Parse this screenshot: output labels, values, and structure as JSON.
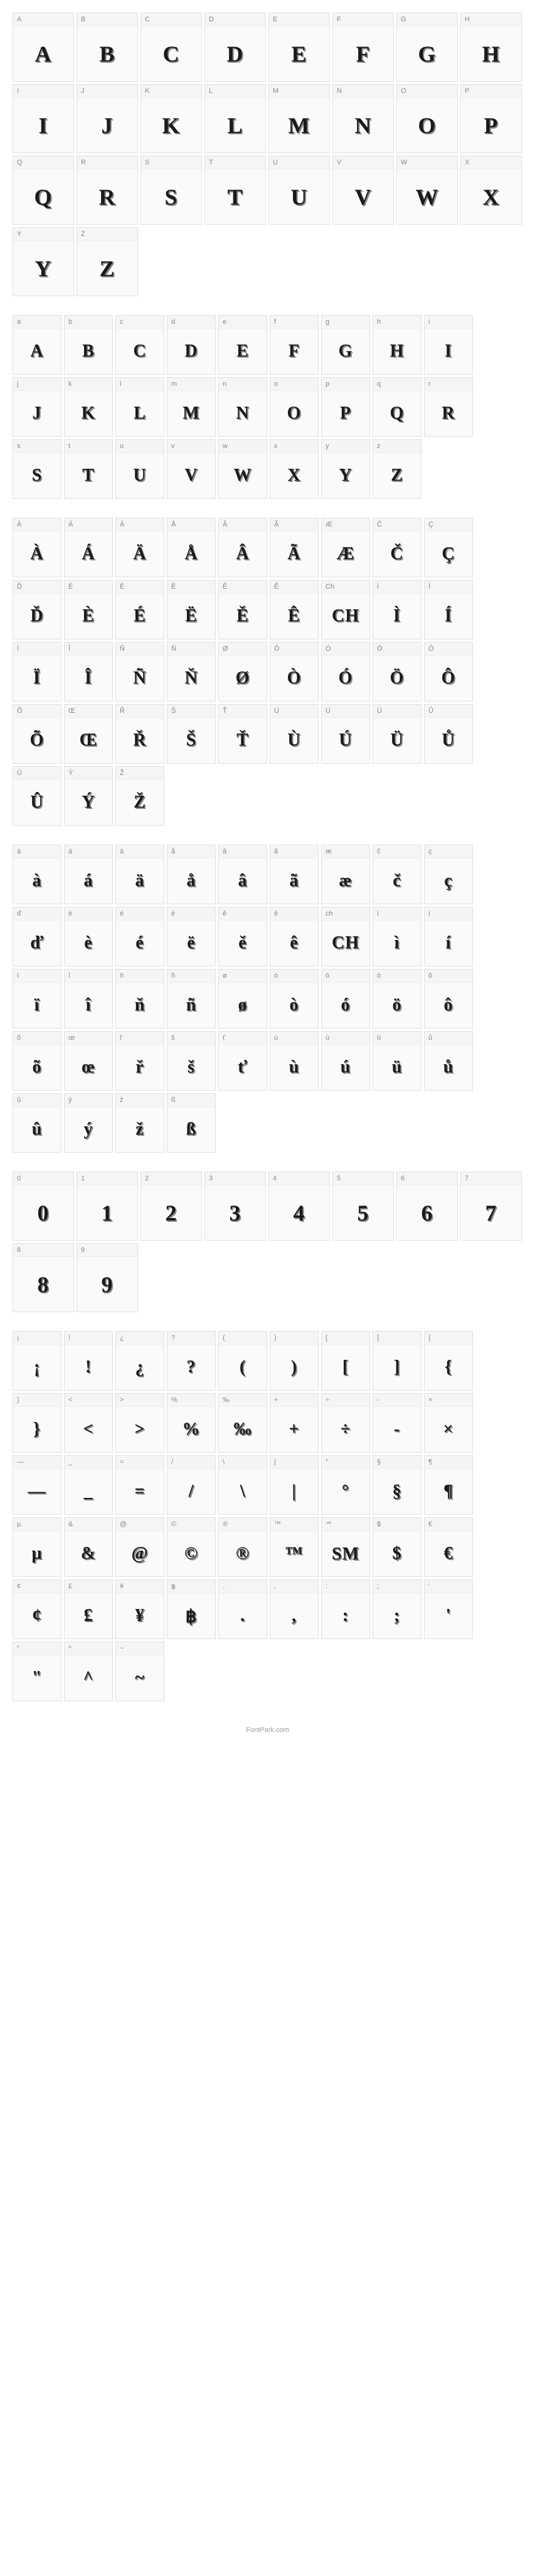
{
  "footer": "FontPark.com",
  "sections": [
    {
      "cols": 8,
      "cells": [
        {
          "label": "A",
          "glyph": "A"
        },
        {
          "label": "B",
          "glyph": "B"
        },
        {
          "label": "C",
          "glyph": "C"
        },
        {
          "label": "D",
          "glyph": "D"
        },
        {
          "label": "E",
          "glyph": "E"
        },
        {
          "label": "F",
          "glyph": "F"
        },
        {
          "label": "G",
          "glyph": "G"
        },
        {
          "label": "H",
          "glyph": "H"
        },
        {
          "label": "I",
          "glyph": "I"
        },
        {
          "label": "J",
          "glyph": "J"
        },
        {
          "label": "K",
          "glyph": "K"
        },
        {
          "label": "L",
          "glyph": "L"
        },
        {
          "label": "M",
          "glyph": "M"
        },
        {
          "label": "N",
          "glyph": "N"
        },
        {
          "label": "O",
          "glyph": "O"
        },
        {
          "label": "P",
          "glyph": "P"
        },
        {
          "label": "Q",
          "glyph": "Q"
        },
        {
          "label": "R",
          "glyph": "R"
        },
        {
          "label": "S",
          "glyph": "S"
        },
        {
          "label": "T",
          "glyph": "T"
        },
        {
          "label": "U",
          "glyph": "U"
        },
        {
          "label": "V",
          "glyph": "V"
        },
        {
          "label": "W",
          "glyph": "W"
        },
        {
          "label": "X",
          "glyph": "X"
        },
        {
          "label": "Y",
          "glyph": "Y"
        },
        {
          "label": "Z",
          "glyph": "Z"
        }
      ]
    },
    {
      "cols": 10,
      "cells": [
        {
          "label": "a",
          "glyph": "A"
        },
        {
          "label": "b",
          "glyph": "B"
        },
        {
          "label": "c",
          "glyph": "C"
        },
        {
          "label": "d",
          "glyph": "D"
        },
        {
          "label": "e",
          "glyph": "E"
        },
        {
          "label": "f",
          "glyph": "F"
        },
        {
          "label": "g",
          "glyph": "G"
        },
        {
          "label": "h",
          "glyph": "H"
        },
        {
          "label": "i",
          "glyph": "I"
        },
        {
          "label": "j",
          "glyph": "J"
        },
        {
          "label": "k",
          "glyph": "K"
        },
        {
          "label": "l",
          "glyph": "L"
        },
        {
          "label": "m",
          "glyph": "M"
        },
        {
          "label": "n",
          "glyph": "N"
        },
        {
          "label": "o",
          "glyph": "O"
        },
        {
          "label": "p",
          "glyph": "P"
        },
        {
          "label": "q",
          "glyph": "Q"
        },
        {
          "label": "r",
          "glyph": "R"
        },
        {
          "label": "s",
          "glyph": "S"
        },
        {
          "label": "t",
          "glyph": "T"
        },
        {
          "label": "u",
          "glyph": "U"
        },
        {
          "label": "v",
          "glyph": "V"
        },
        {
          "label": "w",
          "glyph": "W"
        },
        {
          "label": "x",
          "glyph": "X"
        },
        {
          "label": "y",
          "glyph": "Y"
        },
        {
          "label": "z",
          "glyph": "Z"
        }
      ]
    },
    {
      "cols": 10,
      "cells": [
        {
          "label": "À",
          "glyph": "À"
        },
        {
          "label": "Á",
          "glyph": "Á"
        },
        {
          "label": "Ä",
          "glyph": "Ä"
        },
        {
          "label": "Å",
          "glyph": "Å"
        },
        {
          "label": "Â",
          "glyph": "Â"
        },
        {
          "label": "Ã",
          "glyph": "Ã"
        },
        {
          "label": "Æ",
          "glyph": "Æ"
        },
        {
          "label": "Č",
          "glyph": "Č"
        },
        {
          "label": "Ç",
          "glyph": "Ç"
        },
        {
          "label": "Ď",
          "glyph": "Ď"
        },
        {
          "label": "È",
          "glyph": "È"
        },
        {
          "label": "É",
          "glyph": "É"
        },
        {
          "label": "Ë",
          "glyph": "Ë"
        },
        {
          "label": "Ě",
          "glyph": "Ě"
        },
        {
          "label": "Ê",
          "glyph": "Ê"
        },
        {
          "label": "Ch",
          "glyph": "CH"
        },
        {
          "label": "Ì",
          "glyph": "Ì"
        },
        {
          "label": "Í",
          "glyph": "Í"
        },
        {
          "label": "Ï",
          "glyph": "Ï"
        },
        {
          "label": "Î",
          "glyph": "Î"
        },
        {
          "label": "Ñ",
          "glyph": "Ñ"
        },
        {
          "label": "Ň",
          "glyph": "Ň"
        },
        {
          "label": "Ø",
          "glyph": "Ø"
        },
        {
          "label": "Ò",
          "glyph": "Ò"
        },
        {
          "label": "Ó",
          "glyph": "Ó"
        },
        {
          "label": "Ö",
          "glyph": "Ö"
        },
        {
          "label": "Ô",
          "glyph": "Ô"
        },
        {
          "label": "Õ",
          "glyph": "Õ"
        },
        {
          "label": "Œ",
          "glyph": "Œ"
        },
        {
          "label": "Ř",
          "glyph": "Ř"
        },
        {
          "label": "Š",
          "glyph": "Š"
        },
        {
          "label": "Ť",
          "glyph": "Ť"
        },
        {
          "label": "Ù",
          "glyph": "Ù"
        },
        {
          "label": "Ú",
          "glyph": "Ú"
        },
        {
          "label": "Ü",
          "glyph": "Ü"
        },
        {
          "label": "Ů",
          "glyph": "Ů"
        },
        {
          "label": "Û",
          "glyph": "Û"
        },
        {
          "label": "Ý",
          "glyph": "Ý"
        },
        {
          "label": "Ž",
          "glyph": "Ž"
        }
      ]
    },
    {
      "cols": 10,
      "cells": [
        {
          "label": "à",
          "glyph": "à"
        },
        {
          "label": "á",
          "glyph": "á"
        },
        {
          "label": "ä",
          "glyph": "ä"
        },
        {
          "label": "å",
          "glyph": "å"
        },
        {
          "label": "â",
          "glyph": "â"
        },
        {
          "label": "ã",
          "glyph": "ã"
        },
        {
          "label": "æ",
          "glyph": "æ"
        },
        {
          "label": "č",
          "glyph": "č"
        },
        {
          "label": "ç",
          "glyph": "ç"
        },
        {
          "label": "ď",
          "glyph": "ď"
        },
        {
          "label": "è",
          "glyph": "è"
        },
        {
          "label": "é",
          "glyph": "é"
        },
        {
          "label": "ë",
          "glyph": "ë"
        },
        {
          "label": "ě",
          "glyph": "ě"
        },
        {
          "label": "ê",
          "glyph": "ê"
        },
        {
          "label": "ch",
          "glyph": "CH"
        },
        {
          "label": "ì",
          "glyph": "ì"
        },
        {
          "label": "í",
          "glyph": "í"
        },
        {
          "label": "ï",
          "glyph": "ï"
        },
        {
          "label": "î",
          "glyph": "î"
        },
        {
          "label": "ň",
          "glyph": "ň"
        },
        {
          "label": "ñ",
          "glyph": "ñ"
        },
        {
          "label": "ø",
          "glyph": "ø"
        },
        {
          "label": "ò",
          "glyph": "ò"
        },
        {
          "label": "ó",
          "glyph": "ó"
        },
        {
          "label": "ö",
          "glyph": "ö"
        },
        {
          "label": "ô",
          "glyph": "ô"
        },
        {
          "label": "õ",
          "glyph": "õ"
        },
        {
          "label": "œ",
          "glyph": "œ"
        },
        {
          "label": "ř",
          "glyph": "ř"
        },
        {
          "label": "š",
          "glyph": "š"
        },
        {
          "label": "ť",
          "glyph": "ť"
        },
        {
          "label": "ù",
          "glyph": "ù"
        },
        {
          "label": "ú",
          "glyph": "ú"
        },
        {
          "label": "ü",
          "glyph": "ü"
        },
        {
          "label": "ů",
          "glyph": "ů"
        },
        {
          "label": "û",
          "glyph": "û"
        },
        {
          "label": "ý",
          "glyph": "ý"
        },
        {
          "label": "ž",
          "glyph": "ž"
        },
        {
          "label": "ß",
          "glyph": "ß"
        }
      ]
    },
    {
      "cols": 8,
      "cells": [
        {
          "label": "0",
          "glyph": "0"
        },
        {
          "label": "1",
          "glyph": "1"
        },
        {
          "label": "2",
          "glyph": "2"
        },
        {
          "label": "3",
          "glyph": "3"
        },
        {
          "label": "4",
          "glyph": "4"
        },
        {
          "label": "5",
          "glyph": "5"
        },
        {
          "label": "6",
          "glyph": "6"
        },
        {
          "label": "7",
          "glyph": "7"
        },
        {
          "label": "8",
          "glyph": "8"
        },
        {
          "label": "9",
          "glyph": "9"
        }
      ]
    },
    {
      "cols": 10,
      "cells": [
        {
          "label": "¡",
          "glyph": "¡"
        },
        {
          "label": "!",
          "glyph": "!"
        },
        {
          "label": "¿",
          "glyph": "¿"
        },
        {
          "label": "?",
          "glyph": "?"
        },
        {
          "label": "(",
          "glyph": "("
        },
        {
          "label": ")",
          "glyph": ")"
        },
        {
          "label": "[",
          "glyph": "["
        },
        {
          "label": "]",
          "glyph": "]"
        },
        {
          "label": "{",
          "glyph": "{"
        },
        {
          "label": "}",
          "glyph": "}"
        },
        {
          "label": "<",
          "glyph": "<"
        },
        {
          "label": ">",
          "glyph": ">"
        },
        {
          "label": "%",
          "glyph": "%"
        },
        {
          "label": "‰",
          "glyph": "‰"
        },
        {
          "label": "+",
          "glyph": "+"
        },
        {
          "label": "÷",
          "glyph": "÷"
        },
        {
          "label": "-",
          "glyph": "-"
        },
        {
          "label": "×",
          "glyph": "×"
        },
        {
          "label": "—",
          "glyph": "—"
        },
        {
          "label": "_",
          "glyph": "_"
        },
        {
          "label": "=",
          "glyph": "="
        },
        {
          "label": "/",
          "glyph": "/"
        },
        {
          "label": "\\",
          "glyph": "\\"
        },
        {
          "label": "|",
          "glyph": "|"
        },
        {
          "label": "°",
          "glyph": "°"
        },
        {
          "label": "§",
          "glyph": "§"
        },
        {
          "label": "¶",
          "glyph": "¶"
        },
        {
          "label": "µ",
          "glyph": "µ"
        },
        {
          "label": "&",
          "glyph": "&"
        },
        {
          "label": "@",
          "glyph": "@"
        },
        {
          "label": "©",
          "glyph": "©"
        },
        {
          "label": "®",
          "glyph": "®"
        },
        {
          "label": "™",
          "glyph": "™"
        },
        {
          "label": "℠",
          "glyph": "SM"
        },
        {
          "label": "$",
          "glyph": "$"
        },
        {
          "label": "€",
          "glyph": "€"
        },
        {
          "label": "¢",
          "glyph": "¢"
        },
        {
          "label": "£",
          "glyph": "£"
        },
        {
          "label": "¥",
          "glyph": "¥"
        },
        {
          "label": "฿",
          "glyph": "฿"
        },
        {
          "label": ".",
          "glyph": "."
        },
        {
          "label": ",",
          "glyph": ","
        },
        {
          "label": ":",
          "glyph": ":"
        },
        {
          "label": ";",
          "glyph": ";"
        },
        {
          "label": "'",
          "glyph": "'"
        },
        {
          "label": "\"",
          "glyph": "\""
        },
        {
          "label": "^",
          "glyph": "^"
        },
        {
          "label": "~",
          "glyph": "~"
        }
      ]
    }
  ]
}
